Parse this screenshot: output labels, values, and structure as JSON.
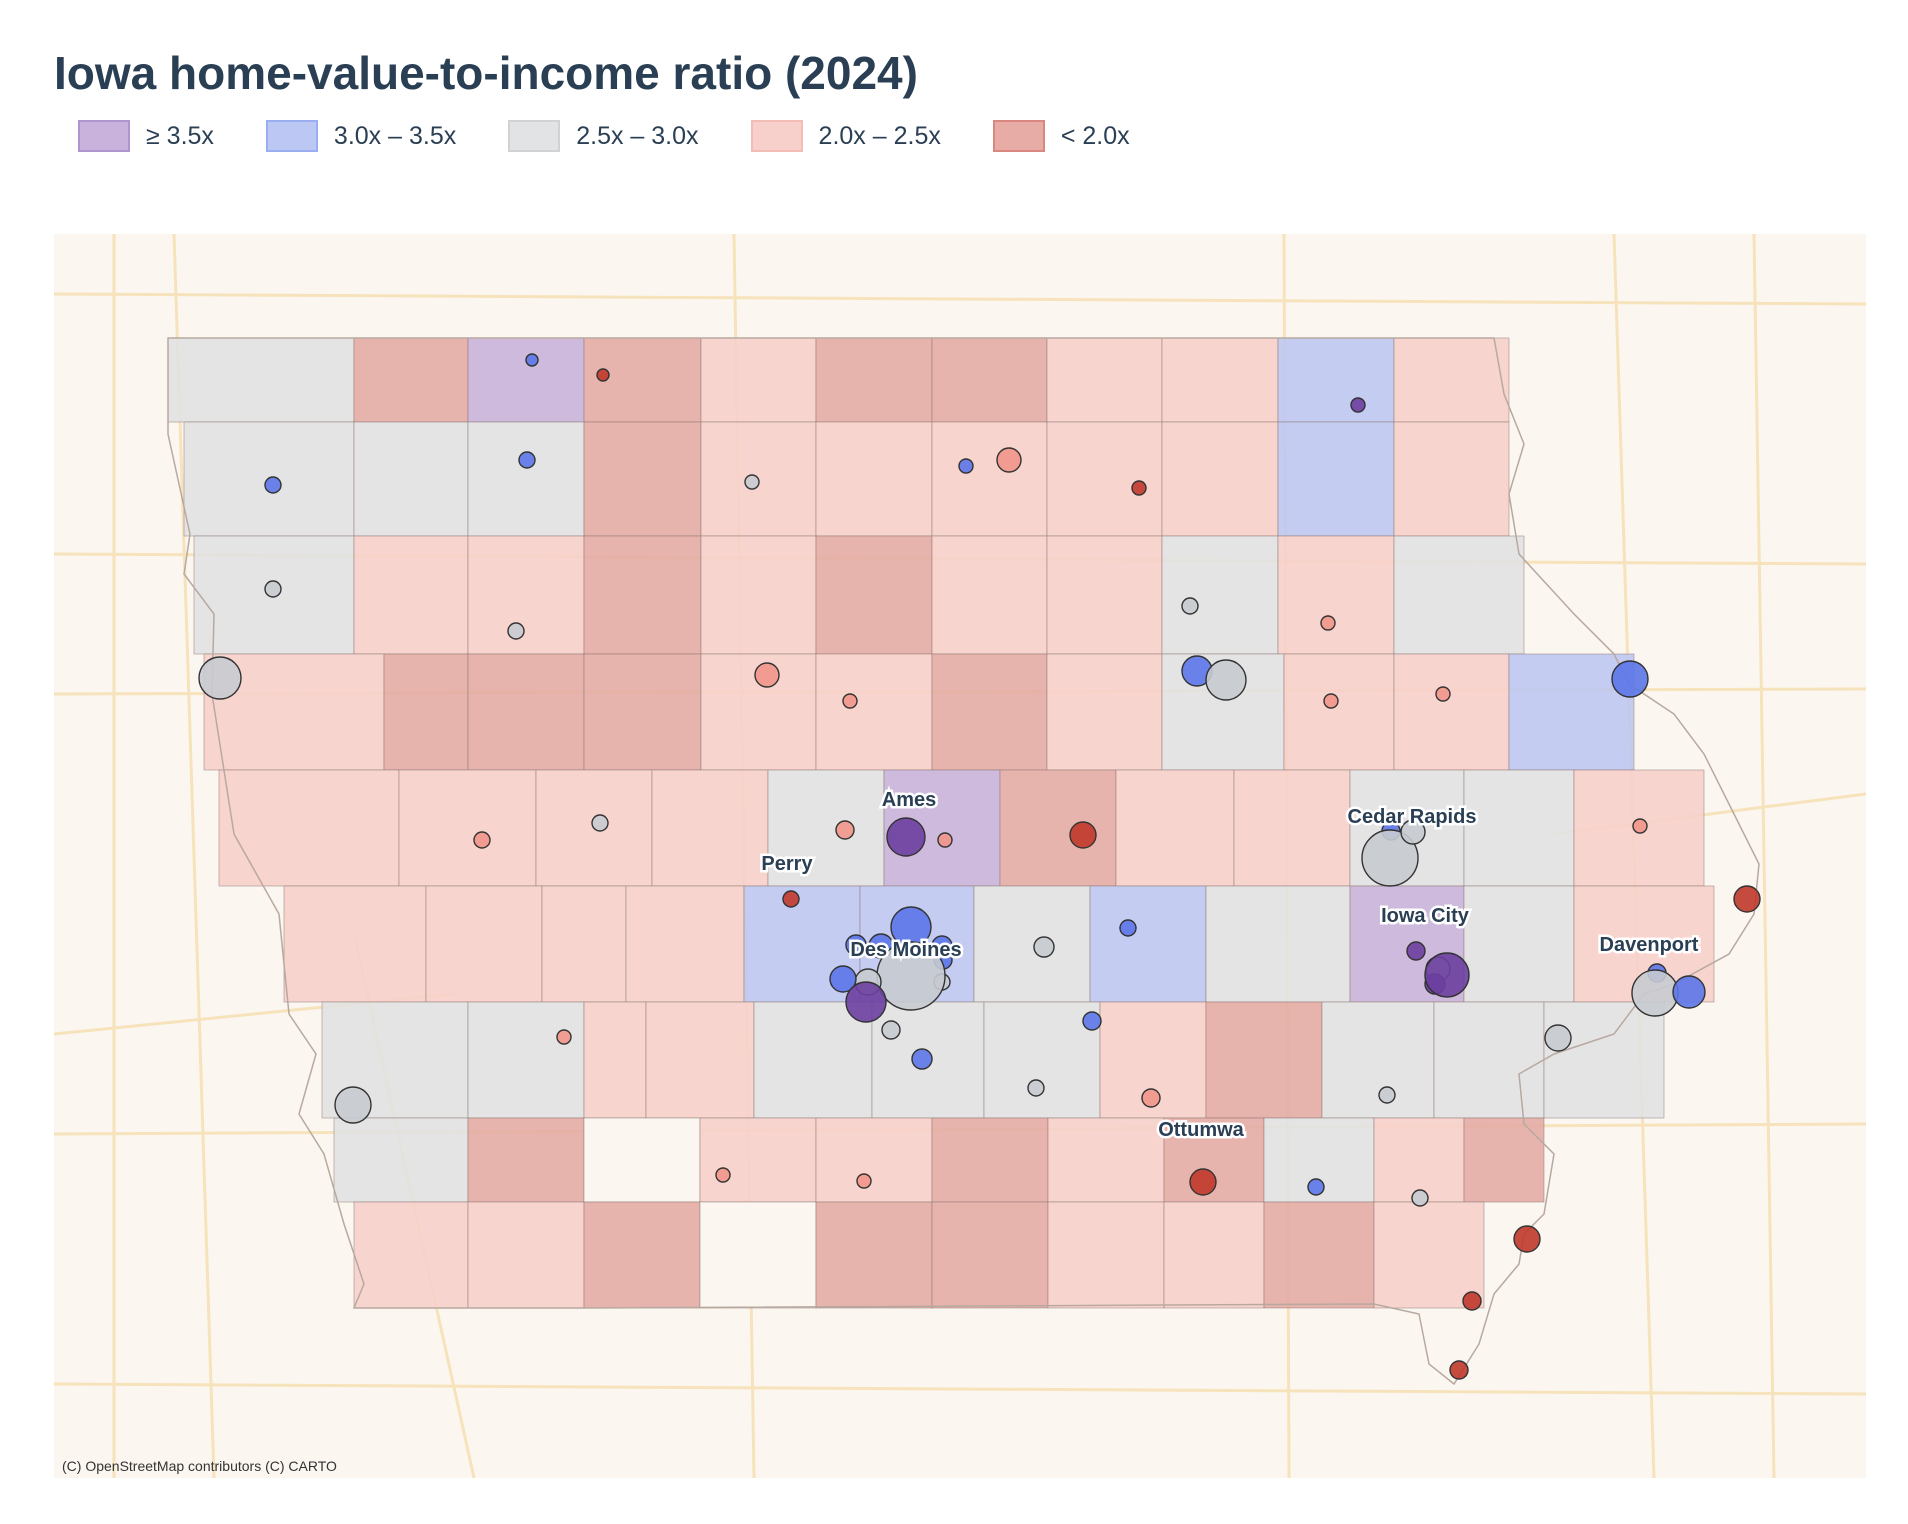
{
  "title": "Iowa home-value-to-income ratio (2024)",
  "legend": [
    {
      "label": "≥ 3.5x",
      "fill": "#c9b3dc",
      "border": "#b195cf"
    },
    {
      "label": "3.0x – 3.5x",
      "fill": "#bcc8f3",
      "border": "#9aaef0"
    },
    {
      "label": "2.5x – 3.0x",
      "fill": "#e2e3e4",
      "border": "#d0d2d4"
    },
    {
      "label": "2.0x – 2.5x",
      "fill": "#f8d0cb",
      "border": "#f3bdb6"
    },
    {
      "label": "< 2.0x",
      "fill": "#e8aca6",
      "border": "#d88880"
    }
  ],
  "class_colors": {
    "purple": "#c7b2d8",
    "blue": "#bdc6f0",
    "gray": "#e1e1e1",
    "pink": "#f7cfc9",
    "red": "#e4aaa3",
    "none": "#fbf6f0"
  },
  "dot_colors": {
    "purple": "#6b3fa0",
    "blue": "#5b76e8",
    "gray": "#c7cbd0",
    "pink": "#f1968a",
    "red": "#c0392b"
  },
  "city_labels": [
    "Ames",
    "Perry",
    "Des Moines",
    "Cedar Rapids",
    "Iowa City",
    "Davenport",
    "Ottumwa"
  ],
  "attribution": "(C) OpenStreetMap contributors (C) CARTO"
}
